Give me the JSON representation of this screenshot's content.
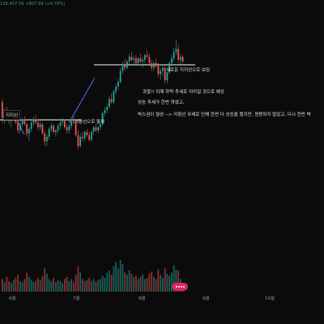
{
  "header": {
    "ticker_readout": "116,457.56 +807.69 (+0.70%)"
  },
  "annotations": {
    "new_support": "새로운 지지선으로 보임",
    "old_support": "지지선",
    "resistance_break": "저항선으로 돌파",
    "note_line_1": "과열!! 이제 하락 추세로 이어질 것으로 예상",
    "note_line_2": "상승 추세가 한번 꺾였고,",
    "note_line_3": "박스권이 형성 --> 저항선 무셰로 인해 한번 더 상승을 했지만, 원용하지 않았고, 다시 한번 박"
  },
  "time_axis": {
    "labels": [
      "6월",
      "7월",
      "8월",
      "9월",
      "10월"
    ]
  },
  "colors": {
    "up": "#26a69a",
    "down": "#ef5350",
    "line": "#ffffff",
    "trend": "#4c6fff",
    "badge": "#e0245e"
  },
  "chart_data": {
    "type": "candlestick",
    "title": "",
    "xlabel": "",
    "ylabel": "",
    "series": [
      {
        "name": "",
        "ohlc": [
          [
            58,
            60,
            45,
            48
          ],
          [
            48,
            54,
            44,
            52
          ],
          [
            52,
            55,
            49,
            50
          ],
          [
            50,
            52,
            44,
            46
          ],
          [
            46,
            50,
            42,
            49
          ],
          [
            49,
            53,
            47,
            51
          ],
          [
            51,
            52,
            44,
            45
          ],
          [
            45,
            47,
            38,
            40
          ],
          [
            40,
            46,
            38,
            44
          ],
          [
            44,
            48,
            42,
            47
          ],
          [
            47,
            49,
            43,
            44
          ],
          [
            44,
            45,
            36,
            38
          ],
          [
            38,
            42,
            33,
            41
          ],
          [
            41,
            46,
            39,
            45
          ],
          [
            45,
            49,
            43,
            47
          ],
          [
            47,
            50,
            44,
            45
          ],
          [
            45,
            47,
            40,
            42
          ],
          [
            42,
            46,
            40,
            44
          ],
          [
            44,
            45,
            37,
            38
          ],
          [
            38,
            40,
            30,
            33
          ],
          [
            33,
            38,
            30,
            36
          ],
          [
            36,
            42,
            34,
            41
          ],
          [
            41,
            45,
            39,
            43
          ],
          [
            43,
            44,
            38,
            39
          ],
          [
            39,
            41,
            36,
            40
          ],
          [
            40,
            44,
            38,
            43
          ],
          [
            43,
            46,
            41,
            45
          ],
          [
            45,
            48,
            43,
            46
          ],
          [
            46,
            47,
            41,
            42
          ],
          [
            42,
            44,
            38,
            40
          ],
          [
            40,
            44,
            38,
            43
          ],
          [
            43,
            47,
            41,
            46
          ],
          [
            46,
            49,
            44,
            45
          ],
          [
            45,
            46,
            36,
            37
          ],
          [
            37,
            40,
            28,
            30
          ],
          [
            30,
            38,
            29,
            36
          ],
          [
            36,
            39,
            33,
            35
          ],
          [
            35,
            40,
            33,
            39
          ],
          [
            39,
            41,
            36,
            37
          ],
          [
            37,
            39,
            33,
            34
          ],
          [
            34,
            40,
            33,
            39
          ],
          [
            39,
            43,
            37,
            42
          ],
          [
            42,
            44,
            39,
            40
          ],
          [
            40,
            43,
            38,
            42
          ],
          [
            42,
            45,
            40,
            44
          ],
          [
            44,
            52,
            43,
            51
          ],
          [
            51,
            55,
            49,
            53
          ],
          [
            53,
            57,
            51,
            55
          ],
          [
            55,
            62,
            54,
            60
          ],
          [
            60,
            64,
            57,
            58
          ],
          [
            58,
            66,
            57,
            65
          ],
          [
            65,
            70,
            63,
            68
          ],
          [
            68,
            73,
            66,
            71
          ],
          [
            71,
            80,
            70,
            78
          ],
          [
            78,
            84,
            76,
            82
          ],
          [
            82,
            86,
            78,
            80
          ],
          [
            80,
            85,
            79,
            84
          ],
          [
            84,
            89,
            82,
            87
          ],
          [
            87,
            90,
            84,
            85
          ],
          [
            85,
            88,
            81,
            86
          ],
          [
            86,
            88,
            82,
            83
          ],
          [
            83,
            87,
            81,
            86
          ],
          [
            86,
            89,
            83,
            84
          ],
          [
            84,
            87,
            80,
            85
          ],
          [
            85,
            89,
            83,
            88
          ],
          [
            88,
            91,
            86,
            87
          ],
          [
            87,
            89,
            82,
            83
          ],
          [
            83,
            85,
            78,
            80
          ],
          [
            80,
            84,
            78,
            83
          ],
          [
            83,
            86,
            80,
            81
          ],
          [
            81,
            83,
            74,
            76
          ],
          [
            76,
            80,
            72,
            78
          ],
          [
            78,
            82,
            75,
            80
          ],
          [
            80,
            81,
            70,
            72
          ],
          [
            72,
            78,
            70,
            77
          ],
          [
            77,
            84,
            76,
            83
          ],
          [
            83,
            88,
            81,
            86
          ],
          [
            86,
            93,
            84,
            90
          ],
          [
            90,
            98,
            88,
            92
          ],
          [
            92,
            95,
            83,
            85
          ],
          [
            85,
            89,
            82,
            87
          ],
          [
            87,
            88,
            83,
            84
          ]
        ],
        "volume": [
          12,
          9,
          14,
          10,
          8,
          11,
          13,
          16,
          10,
          9,
          12,
          18,
          14,
          11,
          9,
          10,
          13,
          11,
          15,
          22,
          17,
          12,
          10,
          13,
          9,
          11,
          10,
          8,
          12,
          14,
          10,
          12,
          9,
          16,
          24,
          18,
          12,
          10,
          11,
          13,
          10,
          12,
          9,
          11,
          12,
          15,
          13,
          18,
          20,
          16,
          24,
          28,
          22,
          30,
          26,
          18,
          16,
          20,
          17,
          14,
          15,
          12,
          14,
          16,
          12,
          13,
          17,
          19,
          14,
          12,
          21,
          16,
          13,
          22,
          17,
          15,
          18,
          25,
          21,
          20,
          12,
          8
        ]
      }
    ]
  }
}
